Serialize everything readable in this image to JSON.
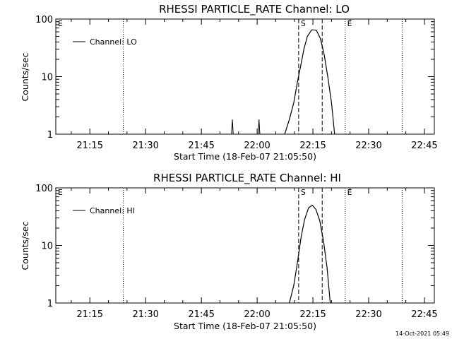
{
  "chart_data": [
    {
      "type": "line",
      "title": "RHESSI PARTICLE_RATE Channel: LO",
      "xlabel": "Start Time (18-Feb-07 21:05:50)",
      "ylabel": "Counts/sec",
      "yscale": "log",
      "xlim": [
        "21:05:50",
        "22:47:40"
      ],
      "ylim": [
        1,
        100
      ],
      "xticks": [
        "21:15",
        "21:30",
        "21:45",
        "22:00",
        "22:15",
        "22:30",
        "22:45"
      ],
      "yticks": [
        "1",
        "10",
        "100"
      ],
      "legend": {
        "position": "top-left",
        "entries": [
          "Channel: LO"
        ]
      },
      "markers": [
        {
          "label": "E",
          "time": "21:05:50",
          "style": "dotted"
        },
        {
          "label": "",
          "time": "21:24:00",
          "style": "dotted"
        },
        {
          "label": "S",
          "time": "22:11:10",
          "style": "dashed"
        },
        {
          "label": "",
          "time": "22:17:30",
          "style": "dashed"
        },
        {
          "label": "E",
          "time": "22:23:40",
          "style": "dotted"
        },
        {
          "label": "",
          "time": "22:39:00",
          "style": "dotted"
        }
      ],
      "series": [
        {
          "name": "Channel: LO",
          "spikes": [
            {
              "time": "21:53:20",
              "value": 1.8
            },
            {
              "time": "22:00:30",
              "value": 1.8
            }
          ],
          "points": [
            [
              "22:07:25",
              1
            ],
            [
              "22:08:40",
              1.8
            ],
            [
              "22:09:50",
              3.5
            ],
            [
              "22:10:50",
              8
            ],
            [
              "22:11:45",
              16
            ],
            [
              "22:12:35",
              30
            ],
            [
              "22:13:30",
              50
            ],
            [
              "22:14:40",
              65
            ],
            [
              "22:15:55",
              64
            ],
            [
              "22:17:00",
              46
            ],
            [
              "22:18:00",
              25
            ],
            [
              "22:19:00",
              10
            ],
            [
              "22:20:00",
              3.5
            ],
            [
              "22:20:50",
              1
            ]
          ]
        }
      ]
    },
    {
      "type": "line",
      "title": "RHESSI PARTICLE_RATE Channel: HI",
      "xlabel": "Start Time (18-Feb-07 21:05:50)",
      "ylabel": "Counts/sec",
      "yscale": "log",
      "xlim": [
        "21:05:50",
        "22:47:40"
      ],
      "ylim": [
        1,
        100
      ],
      "xticks": [
        "21:15",
        "21:30",
        "21:45",
        "22:00",
        "22:15",
        "22:30",
        "22:45"
      ],
      "yticks": [
        "1",
        "10",
        "100"
      ],
      "legend": {
        "position": "top-left",
        "entries": [
          "Channel: HI"
        ]
      },
      "markers": [
        {
          "label": "E",
          "time": "21:05:50",
          "style": "dotted"
        },
        {
          "label": "",
          "time": "21:24:00",
          "style": "dotted"
        },
        {
          "label": "S",
          "time": "22:11:10",
          "style": "dashed"
        },
        {
          "label": "",
          "time": "22:17:30",
          "style": "dashed"
        },
        {
          "label": "E",
          "time": "22:23:40",
          "style": "dotted"
        },
        {
          "label": "",
          "time": "22:39:00",
          "style": "dotted"
        }
      ],
      "series": [
        {
          "name": "Channel: HI",
          "spikes": [],
          "points": [
            [
              "22:08:40",
              1
            ],
            [
              "22:09:50",
              2
            ],
            [
              "22:10:50",
              5
            ],
            [
              "22:11:50",
              14
            ],
            [
              "22:12:45",
              28
            ],
            [
              "22:13:50",
              45
            ],
            [
              "22:14:50",
              50
            ],
            [
              "22:15:50",
              42
            ],
            [
              "22:16:50",
              27
            ],
            [
              "22:17:50",
              12
            ],
            [
              "22:18:50",
              4
            ],
            [
              "22:19:40",
              1
            ]
          ]
        }
      ]
    }
  ],
  "footer": {
    "timestamp": "14-Oct-2021 05:49"
  }
}
